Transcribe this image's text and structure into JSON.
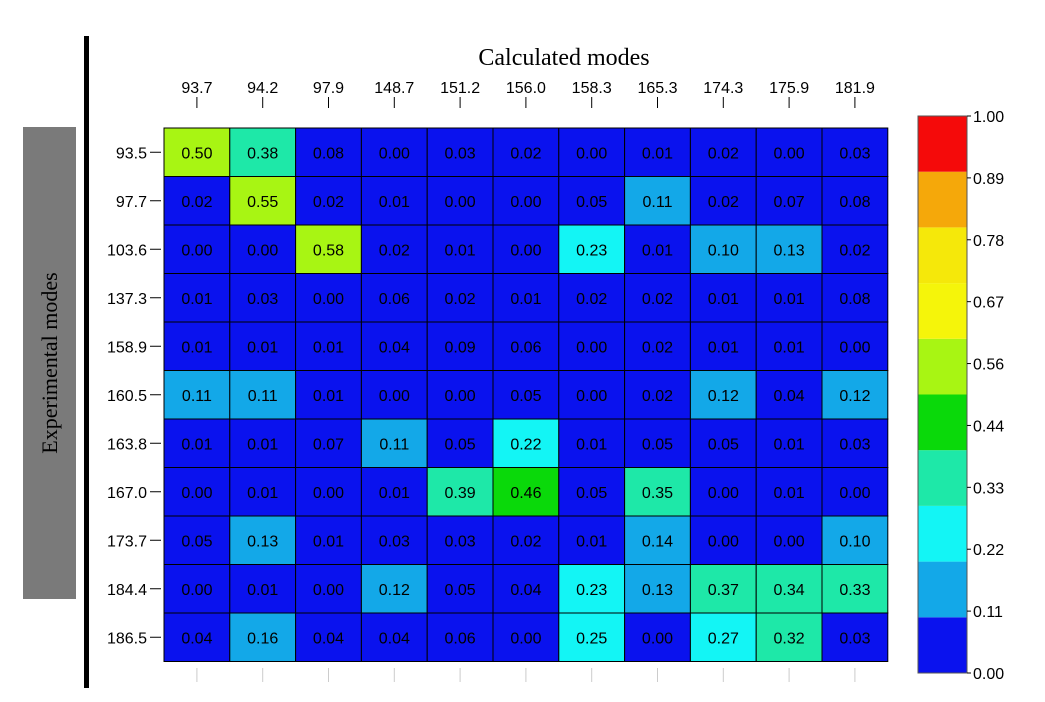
{
  "chart_data": {
    "type": "heatmap",
    "title": "Calculated modes",
    "xlabel": "Calculated modes",
    "ylabel": "Experimental modes",
    "x_categories": [
      "93.7",
      "94.2",
      "97.9",
      "148.7",
      "151.2",
      "156.0",
      "158.3",
      "165.3",
      "174.3",
      "175.9",
      "181.9"
    ],
    "y_categories": [
      "93.5",
      "97.7",
      "103.6",
      "137.3",
      "158.9",
      "160.5",
      "163.8",
      "167.0",
      "173.7",
      "184.4",
      "186.5"
    ],
    "values": [
      [
        0.5,
        0.38,
        0.08,
        0.0,
        0.03,
        0.02,
        0.0,
        0.01,
        0.02,
        0.0,
        0.03
      ],
      [
        0.02,
        0.55,
        0.02,
        0.01,
        0.0,
        0.0,
        0.05,
        0.11,
        0.02,
        0.07,
        0.08
      ],
      [
        0.0,
        0.0,
        0.58,
        0.02,
        0.01,
        0.0,
        0.23,
        0.01,
        0.1,
        0.13,
        0.02
      ],
      [
        0.01,
        0.03,
        0.0,
        0.06,
        0.02,
        0.01,
        0.02,
        0.02,
        0.01,
        0.01,
        0.08
      ],
      [
        0.01,
        0.01,
        0.01,
        0.04,
        0.09,
        0.06,
        0.0,
        0.02,
        0.01,
        0.01,
        0.0
      ],
      [
        0.11,
        0.11,
        0.01,
        0.0,
        0.0,
        0.05,
        0.0,
        0.02,
        0.12,
        0.04,
        0.12
      ],
      [
        0.01,
        0.01,
        0.07,
        0.11,
        0.05,
        0.22,
        0.01,
        0.05,
        0.05,
        0.01,
        0.03
      ],
      [
        0.0,
        0.01,
        0.0,
        0.01,
        0.39,
        0.46,
        0.05,
        0.35,
        0.0,
        0.01,
        0.0
      ],
      [
        0.05,
        0.13,
        0.01,
        0.03,
        0.03,
        0.02,
        0.01,
        0.14,
        0.0,
        0.0,
        0.1
      ],
      [
        0.0,
        0.01,
        0.0,
        0.12,
        0.05,
        0.04,
        0.23,
        0.13,
        0.37,
        0.34,
        0.33
      ],
      [
        0.04,
        0.16,
        0.04,
        0.04,
        0.06,
        0.0,
        0.25,
        0.0,
        0.27,
        0.32,
        0.03
      ]
    ],
    "colorbar": {
      "ticks": [
        "0.00",
        "0.11",
        "0.22",
        "0.33",
        "0.44",
        "0.56",
        "0.67",
        "0.78",
        "0.89",
        "1.00"
      ],
      "colors": [
        "#0a12ee",
        "#13a8e8",
        "#13f5f5",
        "#1ee8a8",
        "#0ad90a",
        "#a8f513",
        "#f5f50a",
        "#f5e80a",
        "#f5a80a",
        "#f50a0a"
      ],
      "range": [
        0,
        1
      ]
    }
  }
}
